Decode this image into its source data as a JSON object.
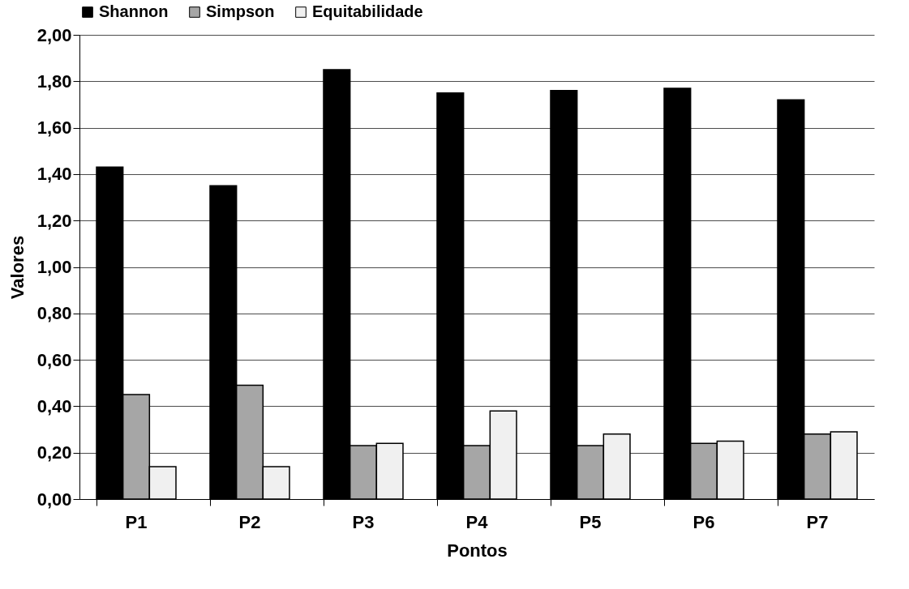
{
  "chart_data": {
    "type": "bar",
    "xlabel": "Pontos",
    "ylabel": "Valores",
    "categories": [
      "P1",
      "P2",
      "P3",
      "P4",
      "P5",
      "P6",
      "P7"
    ],
    "series": [
      {
        "name": "Shannon",
        "color": "#000000",
        "values": [
          1.43,
          1.35,
          1.85,
          1.75,
          1.76,
          1.77,
          1.72
        ]
      },
      {
        "name": "Simpson",
        "color": "#a6a6a6",
        "values": [
          0.45,
          0.49,
          0.23,
          0.23,
          0.23,
          0.24,
          0.28
        ]
      },
      {
        "name": "Equitabilidade",
        "color": "#f0f0f0",
        "values": [
          0.14,
          0.14,
          0.24,
          0.38,
          0.28,
          0.25,
          0.29
        ]
      }
    ],
    "ylim": [
      0,
      2
    ],
    "yticks": [
      {
        "value": 0,
        "label": "0,00"
      },
      {
        "value": 0.2,
        "label": "0,20"
      },
      {
        "value": 0.4,
        "label": "0,40"
      },
      {
        "value": 0.6,
        "label": "0,60"
      },
      {
        "value": 0.8,
        "label": "0,80"
      },
      {
        "value": 1,
        "label": "1,00"
      },
      {
        "value": 1.2,
        "label": "1,20"
      },
      {
        "value": 1.4,
        "label": "1,40"
      },
      {
        "value": 1.6,
        "label": "1,60"
      },
      {
        "value": 1.8,
        "label": "1,80"
      },
      {
        "value": 2,
        "label": "2,00"
      }
    ],
    "grid": "y",
    "legend": "top"
  }
}
